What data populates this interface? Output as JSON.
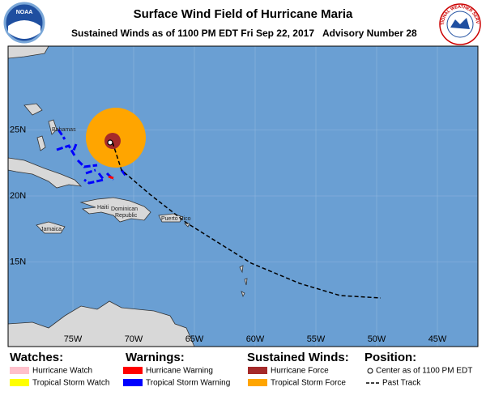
{
  "header": {
    "title": "Surface Wind Field of Hurricane Maria",
    "subtitle": "Sustained Winds as of 1100 PM EDT Fri Sep 22, 2017",
    "advisory": "Advisory Number 28",
    "left_logo": "NOAA",
    "right_logo": "NATIONAL WEATHER SERVICE"
  },
  "map": {
    "lon_ticks": [
      {
        "value": -75,
        "label": "75W"
      },
      {
        "value": -70,
        "label": "70W"
      },
      {
        "value": -65,
        "label": "65W"
      },
      {
        "value": -60,
        "label": "60W"
      },
      {
        "value": -55,
        "label": "55W"
      },
      {
        "value": -50,
        "label": "50W"
      },
      {
        "value": -45,
        "label": "45W"
      }
    ],
    "lat_ticks": [
      {
        "value": 25,
        "label": "25N"
      },
      {
        "value": 20,
        "label": "20N"
      },
      {
        "value": 15,
        "label": "15N"
      }
    ],
    "places": {
      "bahamas": "Bahamas",
      "haiti": "Haiti",
      "dominican_republic": [
        "Dominican",
        "Republic"
      ],
      "puerto_rico": "Puerto Rico",
      "jamaica": "Jamaica"
    }
  },
  "legend": {
    "watches": {
      "title": "Watches:",
      "items": [
        "Hurricane Watch",
        "Tropical Storm Watch"
      ]
    },
    "warnings": {
      "title": "Warnings:",
      "items": [
        "Hurricane Warning",
        "Tropical Storm Warning"
      ]
    },
    "winds": {
      "title": "Sustained Winds:",
      "items": [
        "Hurricane Force",
        "Tropical Storm Force"
      ]
    },
    "position": {
      "title": "Position:",
      "items": [
        "Center as of 1100 PM EDT",
        "Past Track"
      ]
    }
  }
}
